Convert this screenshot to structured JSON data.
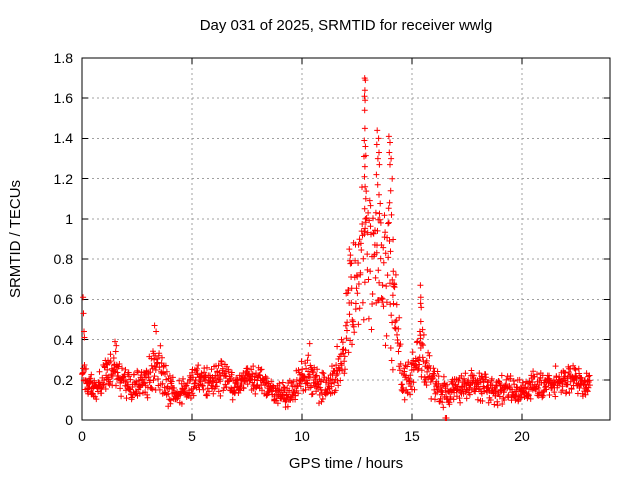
{
  "page": {
    "background": "#ffffff"
  },
  "chart_data": {
    "type": "scatter",
    "title": "Day 031 of 2025, SRMTID for receiver wwlg",
    "xlabel": "GPS time / hours",
    "ylabel": "SRMTID / TECUs",
    "xlim": [
      0,
      24
    ],
    "ylim": [
      0,
      1.8
    ],
    "xticks": [
      0,
      5,
      10,
      15,
      20
    ],
    "xtick_labels": [
      "0",
      "5",
      "10",
      "15",
      "20"
    ],
    "yticks": [
      0,
      0.2,
      0.4,
      0.6,
      0.8,
      1.0,
      1.2,
      1.4,
      1.6,
      1.8
    ],
    "ytick_labels": [
      "0",
      "0.2",
      "0.4",
      "0.6",
      "0.8",
      "1",
      "1.2",
      "1.4",
      "1.6",
      "1.8"
    ],
    "grid": true,
    "legend": "none",
    "marker": "plus",
    "marker_color": "#ff0000",
    "axis_color": "#000000",
    "grid_color": "#a0a0a0",
    "samples_per_hour": 60,
    "series": [
      {
        "name": "SRMTID",
        "description": "1-min SRMTID values; dense noisy baseline 0.1-0.3 TECU with TID event peaking 1.7 TECU near 13 h"
      }
    ],
    "baseline_envelope": [
      [
        0.0,
        0.12,
        0.3
      ],
      [
        0.3,
        0.1,
        0.26
      ],
      [
        0.7,
        0.09,
        0.24
      ],
      [
        1.0,
        0.1,
        0.3
      ],
      [
        1.4,
        0.12,
        0.36
      ],
      [
        1.7,
        0.1,
        0.34
      ],
      [
        2.1,
        0.08,
        0.26
      ],
      [
        2.5,
        0.07,
        0.25
      ],
      [
        2.9,
        0.1,
        0.28
      ],
      [
        3.2,
        0.12,
        0.38
      ],
      [
        3.4,
        0.14,
        0.45
      ],
      [
        3.7,
        0.1,
        0.32
      ],
      [
        4.0,
        0.05,
        0.24
      ],
      [
        4.4,
        0.05,
        0.2
      ],
      [
        4.8,
        0.07,
        0.24
      ],
      [
        5.2,
        0.1,
        0.3
      ],
      [
        5.7,
        0.1,
        0.27
      ],
      [
        6.2,
        0.12,
        0.33
      ],
      [
        6.7,
        0.1,
        0.28
      ],
      [
        7.2,
        0.09,
        0.25
      ],
      [
        7.6,
        0.11,
        0.3
      ],
      [
        8.1,
        0.1,
        0.29
      ],
      [
        8.6,
        0.07,
        0.24
      ],
      [
        9.1,
        0.05,
        0.19
      ],
      [
        9.5,
        0.06,
        0.22
      ],
      [
        9.9,
        0.08,
        0.28
      ],
      [
        10.3,
        0.1,
        0.36
      ],
      [
        10.7,
        0.08,
        0.3
      ],
      [
        11.1,
        0.06,
        0.24
      ],
      [
        11.5,
        0.1,
        0.32
      ],
      [
        11.8,
        0.14,
        0.48
      ],
      [
        12.0,
        0.18,
        0.7
      ],
      [
        12.2,
        0.22,
        0.87
      ],
      [
        12.45,
        0.25,
        1.0
      ],
      [
        12.7,
        0.3,
        1.25
      ],
      [
        12.9,
        0.32,
        1.48
      ],
      [
        13.1,
        0.3,
        1.15
      ],
      [
        13.35,
        0.32,
        1.4
      ],
      [
        13.6,
        0.3,
        1.25
      ],
      [
        13.85,
        0.28,
        1.32
      ],
      [
        14.1,
        0.22,
        1.1
      ],
      [
        14.3,
        0.15,
        0.72
      ],
      [
        14.5,
        0.1,
        0.4
      ],
      [
        14.8,
        0.08,
        0.3
      ],
      [
        15.1,
        0.12,
        0.38
      ],
      [
        15.3,
        0.15,
        0.48
      ],
      [
        15.45,
        0.15,
        0.6
      ],
      [
        15.6,
        0.12,
        0.45
      ],
      [
        15.9,
        0.08,
        0.32
      ],
      [
        16.2,
        0.05,
        0.25
      ],
      [
        16.6,
        0.06,
        0.2
      ],
      [
        17.0,
        0.07,
        0.22
      ],
      [
        17.4,
        0.08,
        0.26
      ],
      [
        17.8,
        0.09,
        0.28
      ],
      [
        18.2,
        0.08,
        0.25
      ],
      [
        18.6,
        0.07,
        0.23
      ],
      [
        19.0,
        0.06,
        0.22
      ],
      [
        19.4,
        0.08,
        0.25
      ],
      [
        19.8,
        0.07,
        0.22
      ],
      [
        20.2,
        0.08,
        0.23
      ],
      [
        20.6,
        0.09,
        0.26
      ],
      [
        21.0,
        0.08,
        0.24
      ],
      [
        21.4,
        0.1,
        0.26
      ],
      [
        21.8,
        0.11,
        0.3
      ],
      [
        22.2,
        0.12,
        0.31
      ],
      [
        22.6,
        0.1,
        0.27
      ],
      [
        22.9,
        0.11,
        0.26
      ],
      [
        23.1,
        0.12,
        0.25
      ]
    ],
    "peak_points": [
      [
        0.05,
        0.61
      ],
      [
        0.07,
        0.53
      ],
      [
        0.09,
        0.44
      ],
      [
        0.11,
        0.41
      ],
      [
        1.5,
        0.39
      ],
      [
        1.56,
        0.37
      ],
      [
        3.3,
        0.47
      ],
      [
        3.37,
        0.44
      ],
      [
        10.35,
        0.38
      ],
      [
        12.15,
        0.85
      ],
      [
        12.2,
        0.82
      ],
      [
        12.25,
        0.78
      ],
      [
        12.85,
        1.7
      ],
      [
        12.88,
        1.69
      ],
      [
        12.86,
        1.64
      ],
      [
        12.84,
        1.61
      ],
      [
        12.87,
        1.59
      ],
      [
        12.85,
        1.54
      ],
      [
        12.86,
        1.45
      ],
      [
        12.83,
        1.39
      ],
      [
        12.88,
        1.36
      ],
      [
        12.82,
        1.31
      ],
      [
        12.86,
        1.26
      ],
      [
        12.84,
        1.21
      ],
      [
        12.87,
        1.16
      ],
      [
        12.9,
        1.1
      ],
      [
        12.85,
        1.05
      ],
      [
        12.88,
        1.0
      ],
      [
        13.42,
        1.44
      ],
      [
        13.48,
        1.4
      ],
      [
        13.4,
        1.37
      ],
      [
        13.5,
        1.33
      ],
      [
        13.45,
        1.3
      ],
      [
        13.52,
        1.27
      ],
      [
        13.38,
        1.22
      ],
      [
        13.44,
        1.17
      ],
      [
        13.5,
        1.12
      ],
      [
        13.95,
        1.41
      ],
      [
        14.0,
        1.38
      ],
      [
        13.97,
        1.33
      ],
      [
        14.05,
        1.3
      ],
      [
        14.0,
        1.27
      ],
      [
        14.1,
        1.2
      ],
      [
        14.03,
        1.14
      ],
      [
        13.98,
        1.08
      ],
      [
        14.07,
        1.02
      ],
      [
        14.15,
        0.74
      ],
      [
        14.18,
        0.68
      ],
      [
        14.13,
        0.62
      ],
      [
        15.38,
        0.67
      ],
      [
        15.4,
        0.61
      ],
      [
        15.39,
        0.58
      ],
      [
        15.42,
        0.56
      ],
      [
        15.4,
        0.49
      ],
      [
        15.36,
        0.44
      ],
      [
        16.52,
        0.01
      ],
      [
        16.57,
        0.01
      ]
    ]
  }
}
